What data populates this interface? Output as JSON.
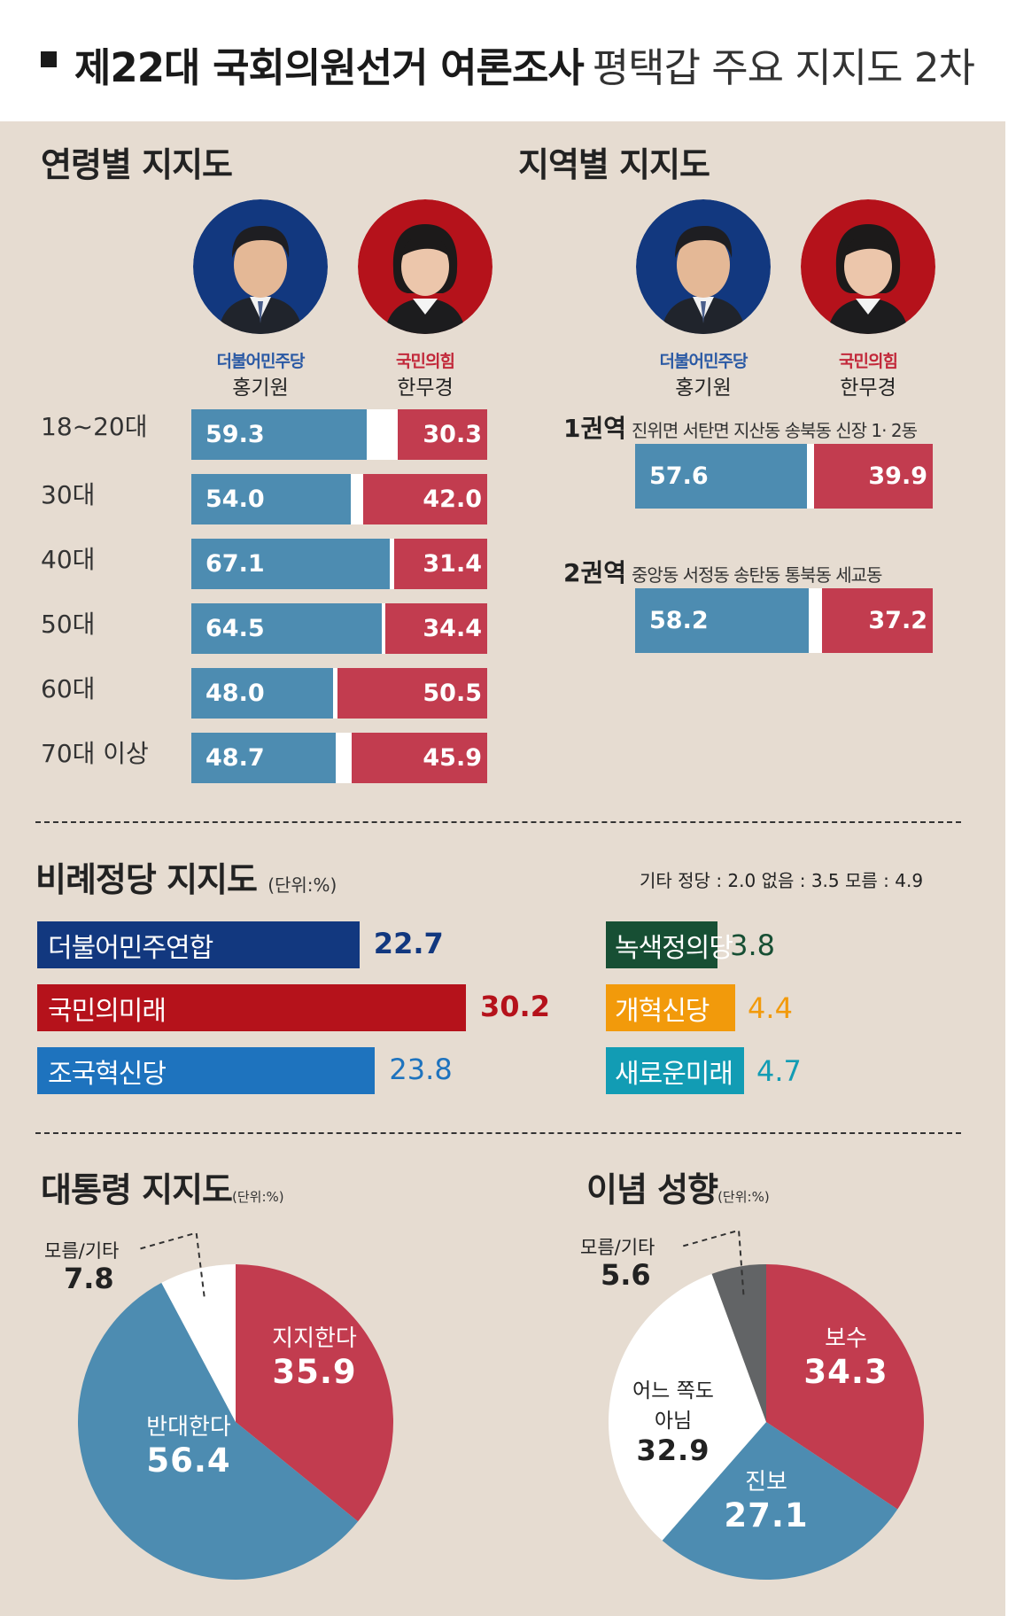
{
  "header": {
    "title_bold": "제22대 국회의원선거 여론조사",
    "title_rest": "평택갑 주요 지지도 2차"
  },
  "colors": {
    "blue": "#4d8cb1",
    "red": "#c23c4f",
    "panel_bg": "#e6dcd1",
    "navy": "#12387f",
    "crimson": "#b5121b",
    "sky": "#1e73be",
    "green": "#174f34",
    "orange": "#f29a0b",
    "teal": "#129cb4",
    "gray": "#626466"
  },
  "candidates": [
    {
      "party": "더불어민주당",
      "name": "홍기원",
      "color": "#12387f",
      "icon": "portrait-man-icon"
    },
    {
      "party": "국민의힘",
      "name": "한무경",
      "color": "#b5121b",
      "icon": "portrait-woman-icon"
    }
  ],
  "age_section": {
    "title": "연령별 지지도",
    "rows": [
      {
        "label": "18~20대",
        "blue": 59.3,
        "red": 30.3,
        "blue_text": "59.3",
        "red_text": "30.3"
      },
      {
        "label": "30대",
        "blue": 54.0,
        "red": 42.0,
        "blue_text": "54.0",
        "red_text": "42.0"
      },
      {
        "label": "40대",
        "blue": 67.1,
        "red": 31.4,
        "blue_text": "67.1",
        "red_text": "31.4"
      },
      {
        "label": "50대",
        "blue": 64.5,
        "red": 34.4,
        "blue_text": "64.5",
        "red_text": "34.4"
      },
      {
        "label": "60대",
        "blue": 48.0,
        "red": 50.5,
        "blue_text": "48.0",
        "red_text": "50.5"
      },
      {
        "label": "70대 이상",
        "blue": 48.7,
        "red": 45.9,
        "blue_text": "48.7",
        "red_text": "45.9"
      }
    ]
  },
  "region_section": {
    "title": "지역별 지지도",
    "rows": [
      {
        "label": "1권역",
        "desc": "진위면 서탄면 지산동 송북동 신장 1· 2동",
        "blue": 57.6,
        "red": 39.9,
        "blue_text": "57.6",
        "red_text": "39.9"
      },
      {
        "label": "2권역",
        "desc": "중앙동 서정동 송탄동 통북동 세교동",
        "blue": 58.2,
        "red": 37.2,
        "blue_text": "58.2",
        "red_text": "37.2"
      }
    ]
  },
  "party_section": {
    "title": "비례정당 지지도",
    "unit": "(단위:%)",
    "others": "기타 정당 : 2.0   없음 : 3.5   모름 : 4.9",
    "left": [
      {
        "name": "더불어민주연합",
        "value": 22.7,
        "value_text": "22.7",
        "color": "#12387f",
        "bold": true
      },
      {
        "name": "국민의미래",
        "value": 30.2,
        "value_text": "30.2",
        "color": "#b5121b",
        "bold": true
      },
      {
        "name": "조국혁신당",
        "value": 23.8,
        "value_text": "23.8",
        "color": "#1e73be",
        "bold": false
      }
    ],
    "right": [
      {
        "name": "녹색정의당",
        "value": 3.8,
        "value_text": "3.8",
        "color": "#174f34"
      },
      {
        "name": "개혁신당",
        "value": 4.4,
        "value_text": "4.4",
        "color": "#f29a0b"
      },
      {
        "name": "새로운미래",
        "value": 4.7,
        "value_text": "4.7",
        "color": "#129cb4"
      }
    ]
  },
  "pie_president": {
    "title": "대통령 지지도",
    "unit": "(단위:%)",
    "slices": [
      {
        "name": "지지한다",
        "value": 35.9,
        "value_text": "35.9",
        "color": "#c23c4f"
      },
      {
        "name": "반대한다",
        "value": 56.4,
        "value_text": "56.4",
        "color": "#4d8cb1"
      },
      {
        "name": "모름/기타",
        "value": 7.8,
        "value_text": "7.8",
        "color": "#ffffff"
      }
    ]
  },
  "pie_ideology": {
    "title": "이념 성향",
    "unit": "(단위:%)",
    "slices": [
      {
        "name": "보수",
        "value": 34.3,
        "value_text": "34.3",
        "color": "#c23c4f"
      },
      {
        "name": "진보",
        "value": 27.1,
        "value_text": "27.1",
        "color": "#4d8cb1"
      },
      {
        "name": "어느 쪽도 아님",
        "name_line1": "어느 쪽도",
        "name_line2": "아님",
        "value": 32.9,
        "value_text": "32.9",
        "color": "#ffffff"
      },
      {
        "name": "모름/기타",
        "value": 5.6,
        "value_text": "5.6",
        "color": "#626466"
      }
    ]
  },
  "chart_data": [
    {
      "type": "bar",
      "title": "연령별 지지도",
      "orientation": "horizontal-stacked",
      "categories": [
        "18~20대",
        "30대",
        "40대",
        "50대",
        "60대",
        "70대 이상"
      ],
      "series": [
        {
          "name": "홍기원 (더불어민주당)",
          "values": [
            59.3,
            54.0,
            67.1,
            64.5,
            48.0,
            48.7
          ]
        },
        {
          "name": "한무경 (국민의힘)",
          "values": [
            30.3,
            42.0,
            31.4,
            34.4,
            50.5,
            45.9
          ]
        }
      ]
    },
    {
      "type": "bar",
      "title": "지역별 지지도",
      "orientation": "horizontal-stacked",
      "categories": [
        "1권역",
        "2권역"
      ],
      "series": [
        {
          "name": "홍기원 (더불어민주당)",
          "values": [
            57.6,
            58.2
          ]
        },
        {
          "name": "한무경 (국민의힘)",
          "values": [
            39.9,
            37.2
          ]
        }
      ]
    },
    {
      "type": "bar",
      "title": "비례정당 지지도",
      "unit": "%",
      "categories": [
        "더불어민주연합",
        "국민의미래",
        "조국혁신당",
        "녹색정의당",
        "개혁신당",
        "새로운미래",
        "기타 정당",
        "없음",
        "모름"
      ],
      "values": [
        22.7,
        30.2,
        23.8,
        3.8,
        4.4,
        4.7,
        2.0,
        3.5,
        4.9
      ]
    },
    {
      "type": "pie",
      "title": "대통령 지지도",
      "unit": "%",
      "categories": [
        "지지한다",
        "반대한다",
        "모름/기타"
      ],
      "values": [
        35.9,
        56.4,
        7.8
      ]
    },
    {
      "type": "pie",
      "title": "이념 성향",
      "unit": "%",
      "categories": [
        "보수",
        "진보",
        "어느 쪽도 아님",
        "모름/기타"
      ],
      "values": [
        34.3,
        27.1,
        32.9,
        5.6
      ]
    }
  ]
}
